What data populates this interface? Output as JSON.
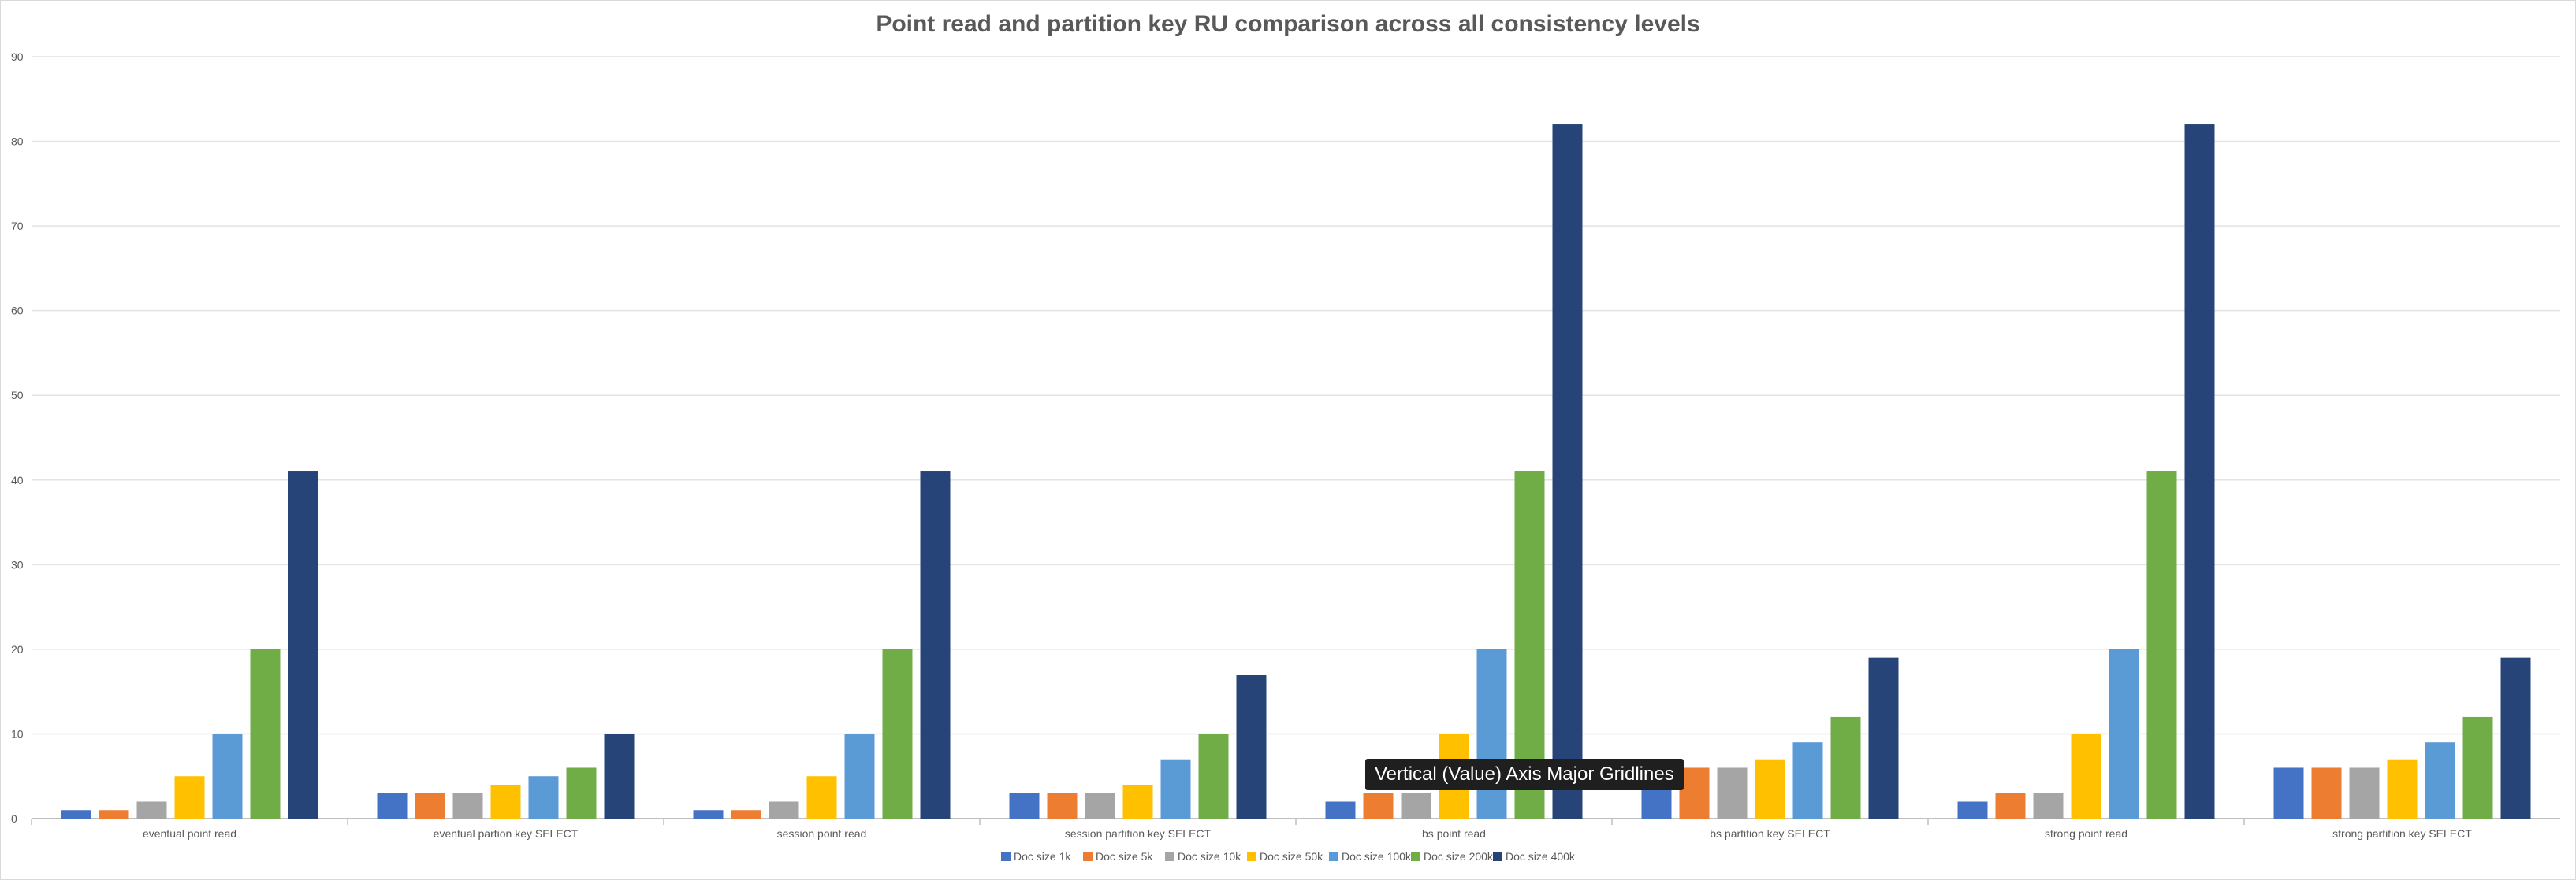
{
  "chart_data": {
    "type": "bar",
    "title": "Point read and partition key RU comparison across all consistency levels",
    "xlabel": "",
    "ylabel": "",
    "ylim": [
      0,
      90
    ],
    "y_ticks": [
      0,
      10,
      20,
      30,
      40,
      50,
      60,
      70,
      80,
      90
    ],
    "grid": true,
    "legend_position": "bottom",
    "categories": [
      "eventual point read",
      "eventual partion key SELECT",
      "session point read",
      "session partition key SELECT",
      "bs point read",
      "bs partition key SELECT",
      "strong point read",
      "strong partition key SELECT"
    ],
    "series": [
      {
        "name": "Doc size 1k",
        "color": "#4472c4",
        "values": [
          1,
          3,
          1,
          3,
          2,
          6,
          2,
          6
        ]
      },
      {
        "name": "Doc size 5k",
        "color": "#ed7d31",
        "values": [
          1,
          3,
          1,
          3,
          3,
          6,
          3,
          6
        ]
      },
      {
        "name": "Doc size 10k",
        "color": "#a5a5a5",
        "values": [
          2,
          3,
          2,
          3,
          3,
          6,
          3,
          6
        ]
      },
      {
        "name": "Doc size 50k",
        "color": "#ffc000",
        "values": [
          5,
          4,
          5,
          4,
          10,
          7,
          10,
          7
        ]
      },
      {
        "name": "Doc size 100k",
        "color": "#5b9bd5",
        "values": [
          10,
          5,
          10,
          7,
          20,
          9,
          20,
          9
        ]
      },
      {
        "name": "Doc size 200k",
        "color": "#70ad47",
        "values": [
          20,
          6,
          20,
          10,
          41,
          12,
          41,
          12
        ]
      },
      {
        "name": "Doc size 400k",
        "color": "#264478",
        "values": [
          41,
          10,
          41,
          17,
          82,
          19,
          82,
          19
        ]
      }
    ]
  },
  "tooltip": {
    "text": "Vertical (Value) Axis Major Gridlines"
  }
}
